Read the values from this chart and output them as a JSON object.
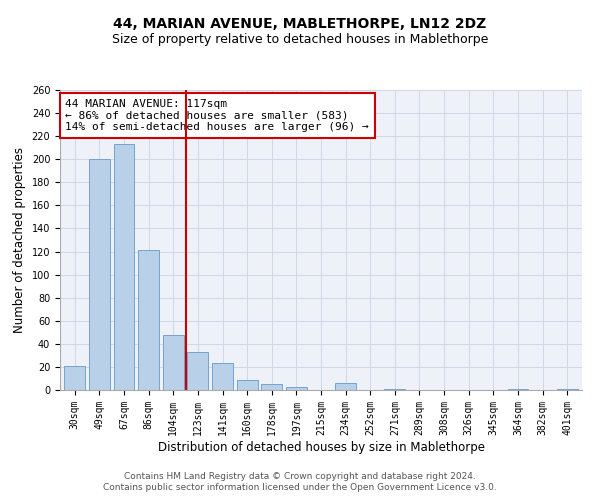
{
  "title": "44, MARIAN AVENUE, MABLETHORPE, LN12 2DZ",
  "subtitle": "Size of property relative to detached houses in Mablethorpe",
  "xlabel": "Distribution of detached houses by size in Mablethorpe",
  "ylabel": "Number of detached properties",
  "categories": [
    "30sqm",
    "49sqm",
    "67sqm",
    "86sqm",
    "104sqm",
    "123sqm",
    "141sqm",
    "160sqm",
    "178sqm",
    "197sqm",
    "215sqm",
    "234sqm",
    "252sqm",
    "271sqm",
    "289sqm",
    "308sqm",
    "326sqm",
    "345sqm",
    "364sqm",
    "382sqm",
    "401sqm"
  ],
  "values": [
    21,
    200,
    213,
    121,
    48,
    33,
    23,
    9,
    5,
    3,
    0,
    6,
    0,
    1,
    0,
    0,
    0,
    0,
    1,
    0,
    1
  ],
  "bar_color": "#b8d0e8",
  "bar_edge_color": "#6699cc",
  "vline_x": 4.5,
  "vline_color": "#cc0000",
  "annotation_line1": "44 MARIAN AVENUE: 117sqm",
  "annotation_line2": "← 86% of detached houses are smaller (583)",
  "annotation_line3": "14% of semi-detached houses are larger (96) →",
  "annotation_box_color": "#cc0000",
  "ylim": [
    0,
    260
  ],
  "yticks": [
    0,
    20,
    40,
    60,
    80,
    100,
    120,
    140,
    160,
    180,
    200,
    220,
    240,
    260
  ],
  "grid_color": "#ccd8e8",
  "background_color": "#eef2f8",
  "footer_line1": "Contains HM Land Registry data © Crown copyright and database right 2024.",
  "footer_line2": "Contains public sector information licensed under the Open Government Licence v3.0.",
  "title_fontsize": 10,
  "subtitle_fontsize": 9,
  "xlabel_fontsize": 8.5,
  "ylabel_fontsize": 8.5,
  "tick_fontsize": 7,
  "annotation_fontsize": 8,
  "footer_fontsize": 6.5
}
